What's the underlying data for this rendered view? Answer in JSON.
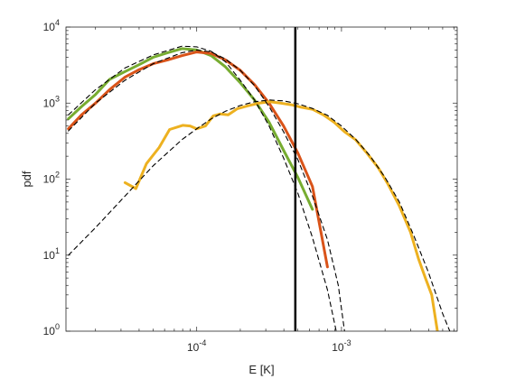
{
  "chart_data": {
    "type": "line",
    "title": "",
    "xlabel": "E [K]",
    "ylabel": "pdf",
    "xscale": "log",
    "yscale": "log",
    "xlim": [
      1.25e-05,
      0.0063
    ],
    "ylim": [
      1,
      10000
    ],
    "grid": false,
    "legend": "none",
    "x_ticks": [
      {
        "value": 0.0001,
        "base": "10",
        "exp": "-4"
      },
      {
        "value": 0.001,
        "base": "10",
        "exp": "-3"
      }
    ],
    "y_ticks": [
      {
        "value": 1,
        "base": "10",
        "exp": "0"
      },
      {
        "value": 10,
        "base": "10",
        "exp": "1"
      },
      {
        "value": 100,
        "base": "10",
        "exp": "2"
      },
      {
        "value": 1000,
        "base": "10",
        "exp": "3"
      },
      {
        "value": 10000,
        "base": "10",
        "exp": "4"
      }
    ],
    "vline": {
      "x": 0.00048,
      "color": "#000000"
    },
    "series": [
      {
        "color": "#77AC30",
        "style": "solid",
        "points": [
          [
            1.3e-05,
            620
          ],
          [
            1.6e-05,
            900
          ],
          [
            2e-05,
            1300
          ],
          [
            2.5e-05,
            2050
          ],
          [
            3.2e-05,
            2600
          ],
          [
            4e-05,
            3200
          ],
          [
            5e-05,
            4000
          ],
          [
            6.3e-05,
            4600
          ],
          [
            7.9e-05,
            5200
          ],
          [
            0.0001,
            5000
          ],
          [
            0.000126,
            4200
          ],
          [
            0.000158,
            3000
          ],
          [
            0.0002,
            1850
          ],
          [
            0.000251,
            1100
          ],
          [
            0.000316,
            560
          ],
          [
            0.000398,
            240
          ],
          [
            0.0005,
            105
          ],
          [
            0.00063,
            40
          ]
        ]
      },
      {
        "color": "#D95319",
        "style": "solid",
        "points": [
          [
            1.3e-05,
            460
          ],
          [
            1.6e-05,
            700
          ],
          [
            2e-05,
            1000
          ],
          [
            2.5e-05,
            1500
          ],
          [
            3.2e-05,
            2200
          ],
          [
            4e-05,
            2750
          ],
          [
            5e-05,
            3300
          ],
          [
            6.3e-05,
            3700
          ],
          [
            7.9e-05,
            4200
          ],
          [
            0.0001,
            4700
          ],
          [
            0.000126,
            4500
          ],
          [
            0.000158,
            3700
          ],
          [
            0.0002,
            2700
          ],
          [
            0.000251,
            1750
          ],
          [
            0.000316,
            1000
          ],
          [
            0.000398,
            500
          ],
          [
            0.0005,
            220
          ],
          [
            0.00063,
            80
          ],
          [
            0.0008,
            7
          ]
        ]
      },
      {
        "color": "#EDB120",
        "style": "solid",
        "points": [
          [
            3.2e-05,
            90
          ],
          [
            3.8e-05,
            75
          ],
          [
            4.5e-05,
            160
          ],
          [
            5.5e-05,
            260
          ],
          [
            6.5e-05,
            450
          ],
          [
            8e-05,
            510
          ],
          [
            9e-05,
            500
          ],
          [
            0.0001,
            460
          ],
          [
            0.000115,
            500
          ],
          [
            0.00013,
            680
          ],
          [
            0.000145,
            720
          ],
          [
            0.000165,
            700
          ],
          [
            0.00019,
            840
          ],
          [
            0.000225,
            920
          ],
          [
            0.00027,
            1000
          ],
          [
            0.00032,
            1040
          ],
          [
            0.00038,
            1000
          ],
          [
            0.00045,
            950
          ],
          [
            0.00053,
            880
          ],
          [
            0.00063,
            830
          ],
          [
            0.00075,
            700
          ],
          [
            0.00089,
            560
          ],
          [
            0.00105,
            420
          ],
          [
            0.00125,
            330
          ],
          [
            0.0015,
            220
          ],
          [
            0.0018,
            140
          ],
          [
            0.0021,
            85
          ],
          [
            0.0025,
            45
          ],
          [
            0.003,
            20
          ],
          [
            0.0034,
            9
          ],
          [
            0.0038,
            5
          ],
          [
            0.0042,
            3
          ],
          [
            0.0046,
            1
          ]
        ]
      },
      {
        "color": "#000000",
        "style": "dashed",
        "points": [
          [
            1.3e-05,
            700
          ],
          [
            2e-05,
            1500
          ],
          [
            3.2e-05,
            2900
          ],
          [
            5e-05,
            4300
          ],
          [
            7.9e-05,
            5600
          ],
          [
            0.0001,
            5500
          ],
          [
            0.000126,
            4800
          ],
          [
            0.000158,
            3500
          ],
          [
            0.0002,
            2000
          ],
          [
            0.000251,
            1100
          ],
          [
            0.000316,
            500
          ],
          [
            0.000398,
            190
          ],
          [
            0.0005,
            65
          ],
          [
            0.00063,
            17
          ],
          [
            0.0008,
            3.5
          ],
          [
            0.00092,
            1
          ]
        ]
      },
      {
        "color": "#000000",
        "style": "dashed",
        "points": [
          [
            1.3e-05,
            430
          ],
          [
            2e-05,
            1000
          ],
          [
            3.2e-05,
            2000
          ],
          [
            5e-05,
            3300
          ],
          [
            7.9e-05,
            4600
          ],
          [
            0.0001,
            5000
          ],
          [
            0.000126,
            4700
          ],
          [
            0.000158,
            3800
          ],
          [
            0.0002,
            2700
          ],
          [
            0.000251,
            1700
          ],
          [
            0.000316,
            900
          ],
          [
            0.000398,
            420
          ],
          [
            0.0005,
            180
          ],
          [
            0.00063,
            60
          ],
          [
            0.0008,
            16
          ],
          [
            0.00095,
            4
          ],
          [
            0.00105,
            1
          ]
        ]
      },
      {
        "color": "#000000",
        "style": "dashed",
        "points": [
          [
            1.3e-05,
            10
          ],
          [
            2e-05,
            23
          ],
          [
            3.2e-05,
            60
          ],
          [
            5e-05,
            150
          ],
          [
            7.9e-05,
            330
          ],
          [
            0.0001,
            460
          ],
          [
            0.000126,
            620
          ],
          [
            0.000158,
            780
          ],
          [
            0.0002,
            930
          ],
          [
            0.000251,
            1040
          ],
          [
            0.000316,
            1100
          ],
          [
            0.000398,
            1070
          ],
          [
            0.0005,
            980
          ],
          [
            0.00063,
            850
          ],
          [
            0.0008,
            690
          ],
          [
            0.001,
            500
          ],
          [
            0.00126,
            330
          ],
          [
            0.00158,
            200
          ],
          [
            0.002,
            105
          ],
          [
            0.00251,
            50
          ],
          [
            0.00316,
            18
          ],
          [
            0.00398,
            6
          ],
          [
            0.005,
            1.7
          ],
          [
            0.0056,
            1
          ]
        ]
      }
    ]
  }
}
